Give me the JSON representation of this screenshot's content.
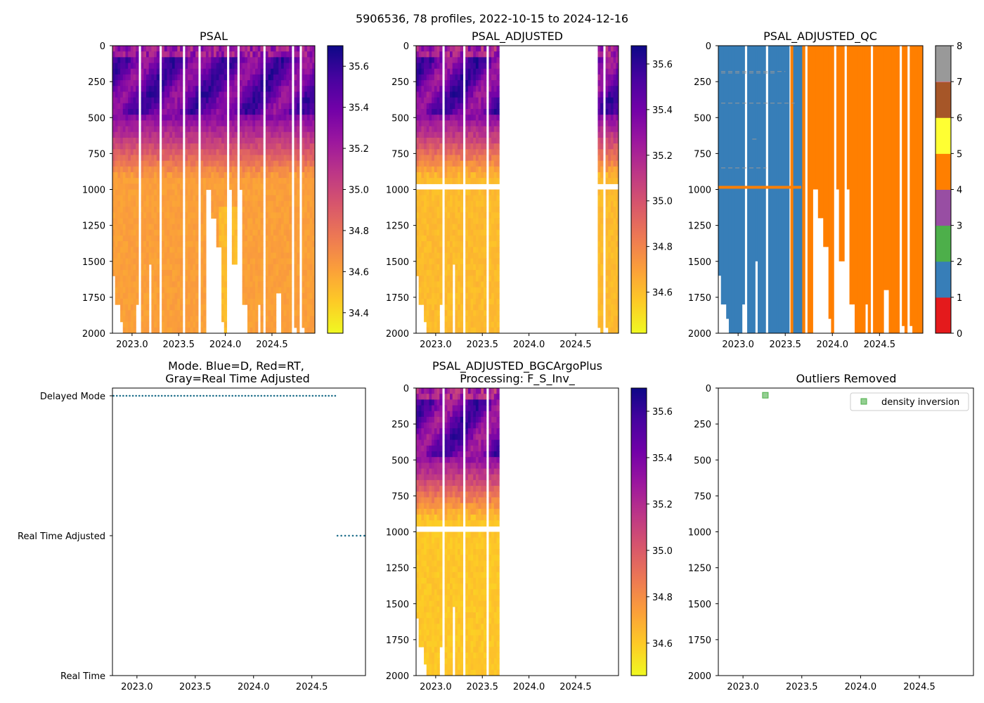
{
  "suptitle": "5906536, 78 profiles, 2022-10-15 to 2024-12-16",
  "colors": {
    "plasma_stops": [
      "#f0f921",
      "#fdca26",
      "#fb9f3a",
      "#ed7953",
      "#d8576b",
      "#bd3786",
      "#9c179e",
      "#7201a8",
      "#46039f",
      "#0d0887"
    ],
    "qc_flags": [
      "#e41a1c",
      "#377eb8",
      "#4daf4a",
      "#984ea3",
      "#ff7f00",
      "#ffff33",
      "#a65628",
      "#f781bf",
      "#999999"
    ],
    "mode_marker": "#1f6f8b",
    "outlier_marker": "#4daf4a"
  },
  "chart_data": [
    {
      "id": "psal",
      "type": "heatmap",
      "title": "PSAL",
      "x_ticks": [
        "2023.0",
        "2023.5",
        "2024.0",
        "2024.5"
      ],
      "x_tick_values": [
        2023.0,
        2023.5,
        2024.0,
        2024.5
      ],
      "xlim": [
        2022.79,
        2024.96
      ],
      "y_ticks": [
        "0",
        "250",
        "500",
        "750",
        "1000",
        "1250",
        "1500",
        "1750",
        "2000"
      ],
      "y_tick_values": [
        0,
        250,
        500,
        750,
        1000,
        1250,
        1500,
        1750,
        2000
      ],
      "ylim": [
        2000,
        0
      ],
      "colorbar": {
        "min": 34.3,
        "max": 35.7,
        "ticks": [
          "34.4",
          "34.6",
          "34.8",
          "35.0",
          "35.2",
          "35.4",
          "35.6"
        ],
        "tick_values": [
          34.4,
          34.6,
          34.8,
          35.0,
          35.2,
          35.4,
          35.6
        ]
      },
      "time_range": [
        2022.79,
        2024.96
      ],
      "depth_range": [
        0,
        2000
      ],
      "data_range": [
        34.4,
        35.6
      ]
    },
    {
      "id": "psal_adj",
      "type": "heatmap",
      "title": "PSAL_ADJUSTED",
      "x_ticks": [
        "2023.0",
        "2023.5",
        "2024.0",
        "2024.5"
      ],
      "x_tick_values": [
        2023.0,
        2023.5,
        2024.0,
        2024.5
      ],
      "xlim": [
        2022.79,
        2024.96
      ],
      "y_ticks": [
        "0",
        "250",
        "500",
        "750",
        "1000",
        "1250",
        "1500",
        "1750",
        "2000"
      ],
      "y_tick_values": [
        0,
        250,
        500,
        750,
        1000,
        1250,
        1500,
        1750,
        2000
      ],
      "ylim": [
        2000,
        0
      ],
      "colorbar": {
        "min": 34.42,
        "max": 35.68,
        "ticks": [
          "34.6",
          "34.8",
          "35.0",
          "35.2",
          "35.4",
          "35.6"
        ],
        "tick_values": [
          34.6,
          34.8,
          35.0,
          35.2,
          35.4,
          35.6
        ]
      },
      "data_segments": [
        [
          2022.79,
          2023.67
        ],
        [
          2024.71,
          2024.96
        ]
      ],
      "gap_band_depth": 985
    },
    {
      "id": "psal_adj_qc",
      "type": "heatmap",
      "title": "PSAL_ADJUSTED_QC",
      "x_ticks": [
        "2023.0",
        "2023.5",
        "2024.0",
        "2024.5"
      ],
      "x_tick_values": [
        2023.0,
        2023.5,
        2024.0,
        2024.5
      ],
      "xlim": [
        2022.79,
        2024.96
      ],
      "y_ticks": [
        "0",
        "250",
        "500",
        "750",
        "1000",
        "1250",
        "1500",
        "1750",
        "2000"
      ],
      "y_tick_values": [
        0,
        250,
        500,
        750,
        1000,
        1250,
        1500,
        1750,
        2000
      ],
      "ylim": [
        2000,
        0
      ],
      "colorbar": {
        "min": 0,
        "max": 8,
        "ticks": [
          "0",
          "1",
          "2",
          "3",
          "4",
          "5",
          "6",
          "7",
          "8"
        ],
        "tick_values": [
          0,
          1,
          2,
          3,
          4,
          5,
          6,
          7,
          8
        ]
      },
      "flag_1_until": 2023.67,
      "flag_4_from": 2023.67
    },
    {
      "id": "mode",
      "type": "scatter",
      "title_lines": [
        "Mode. Blue=D, Red=RT,",
        "Gray=Real Time Adjusted"
      ],
      "x_ticks": [
        "2023.0",
        "2023.5",
        "2024.0",
        "2024.5"
      ],
      "x_tick_values": [
        2023.0,
        2023.5,
        2024.0,
        2024.5
      ],
      "xlim": [
        2022.79,
        2024.96
      ],
      "y_labels": [
        "Delayed Mode",
        "Real Time Adjusted",
        "Real Time"
      ],
      "y_values": [
        2,
        1,
        0
      ],
      "series": [
        {
          "name": "Delayed Mode",
          "y": 2,
          "x_range": [
            2022.8,
            2024.7
          ],
          "count": 70
        },
        {
          "name": "Real Time Adjusted",
          "y": 1,
          "x_range": [
            2024.72,
            2024.95
          ],
          "count": 8
        }
      ]
    },
    {
      "id": "bgc",
      "type": "heatmap",
      "title_lines": [
        "PSAL_ADJUSTED_BGCArgoPlus",
        "Processing: F_S_Inv_"
      ],
      "x_ticks": [
        "2023.0",
        "2023.5",
        "2024.0",
        "2024.5"
      ],
      "x_tick_values": [
        2023.0,
        2023.5,
        2024.0,
        2024.5
      ],
      "xlim": [
        2022.79,
        2024.96
      ],
      "y_ticks": [
        "0",
        "250",
        "500",
        "750",
        "1000",
        "1250",
        "1500",
        "1750",
        "2000"
      ],
      "y_tick_values": [
        0,
        250,
        500,
        750,
        1000,
        1250,
        1500,
        1750,
        2000
      ],
      "ylim": [
        2000,
        0
      ],
      "colorbar": {
        "min": 34.46,
        "max": 35.7,
        "ticks": [
          "34.6",
          "34.8",
          "35.0",
          "35.2",
          "35.4",
          "35.6"
        ],
        "tick_values": [
          34.6,
          34.8,
          35.0,
          35.2,
          35.4,
          35.6
        ]
      },
      "data_segments": [
        [
          2022.79,
          2023.67
        ]
      ],
      "gap_band_depth": 985
    },
    {
      "id": "outliers",
      "type": "scatter",
      "title": "Outliers Removed",
      "x_ticks": [
        "2023.0",
        "2023.5",
        "2024.0",
        "2024.5"
      ],
      "x_tick_values": [
        2023.0,
        2023.5,
        2024.0,
        2024.5
      ],
      "xlim": [
        2022.79,
        2024.96
      ],
      "y_ticks": [
        "0",
        "250",
        "500",
        "750",
        "1000",
        "1250",
        "1500",
        "1750",
        "2000"
      ],
      "y_tick_values": [
        0,
        250,
        500,
        750,
        1000,
        1250,
        1500,
        1750,
        2000
      ],
      "ylim": [
        2000,
        0
      ],
      "legend": {
        "label": "density inversion",
        "placement": "top-right"
      },
      "points": [
        {
          "x": 2023.19,
          "y": 50,
          "label": "density inversion"
        }
      ]
    }
  ]
}
